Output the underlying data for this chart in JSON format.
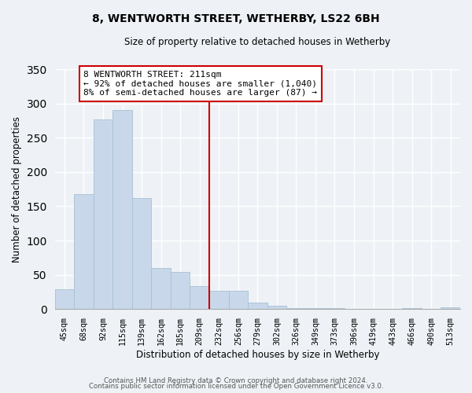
{
  "title": "8, WENTWORTH STREET, WETHERBY, LS22 6BH",
  "subtitle": "Size of property relative to detached houses in Wetherby",
  "xlabel": "Distribution of detached houses by size in Wetherby",
  "ylabel": "Number of detached properties",
  "bin_labels": [
    "45sqm",
    "68sqm",
    "92sqm",
    "115sqm",
    "139sqm",
    "162sqm",
    "185sqm",
    "209sqm",
    "232sqm",
    "256sqm",
    "279sqm",
    "302sqm",
    "326sqm",
    "349sqm",
    "373sqm",
    "396sqm",
    "419sqm",
    "443sqm",
    "466sqm",
    "490sqm",
    "513sqm"
  ],
  "bar_heights": [
    29,
    168,
    277,
    290,
    162,
    60,
    54,
    33,
    27,
    27,
    10,
    5,
    1,
    1,
    1,
    0,
    0,
    0,
    1,
    0,
    3
  ],
  "bar_color": "#c8d8ea",
  "bar_edge_color": "#a8c0d4",
  "vline_index": 7,
  "vline_color": "#cc0000",
  "annotation_title": "8 WENTWORTH STREET: 211sqm",
  "annotation_line1": "← 92% of detached houses are smaller (1,040)",
  "annotation_line2": "8% of semi-detached houses are larger (87) →",
  "annotation_box_color": "#ffffff",
  "annotation_box_edge": "#cc0000",
  "ylim": [
    0,
    350
  ],
  "yticks": [
    0,
    50,
    100,
    150,
    200,
    250,
    300,
    350
  ],
  "footer1": "Contains HM Land Registry data © Crown copyright and database right 2024.",
  "footer2": "Contains public sector information licensed under the Open Government Licence v3.0.",
  "bg_color": "#eef2f6"
}
